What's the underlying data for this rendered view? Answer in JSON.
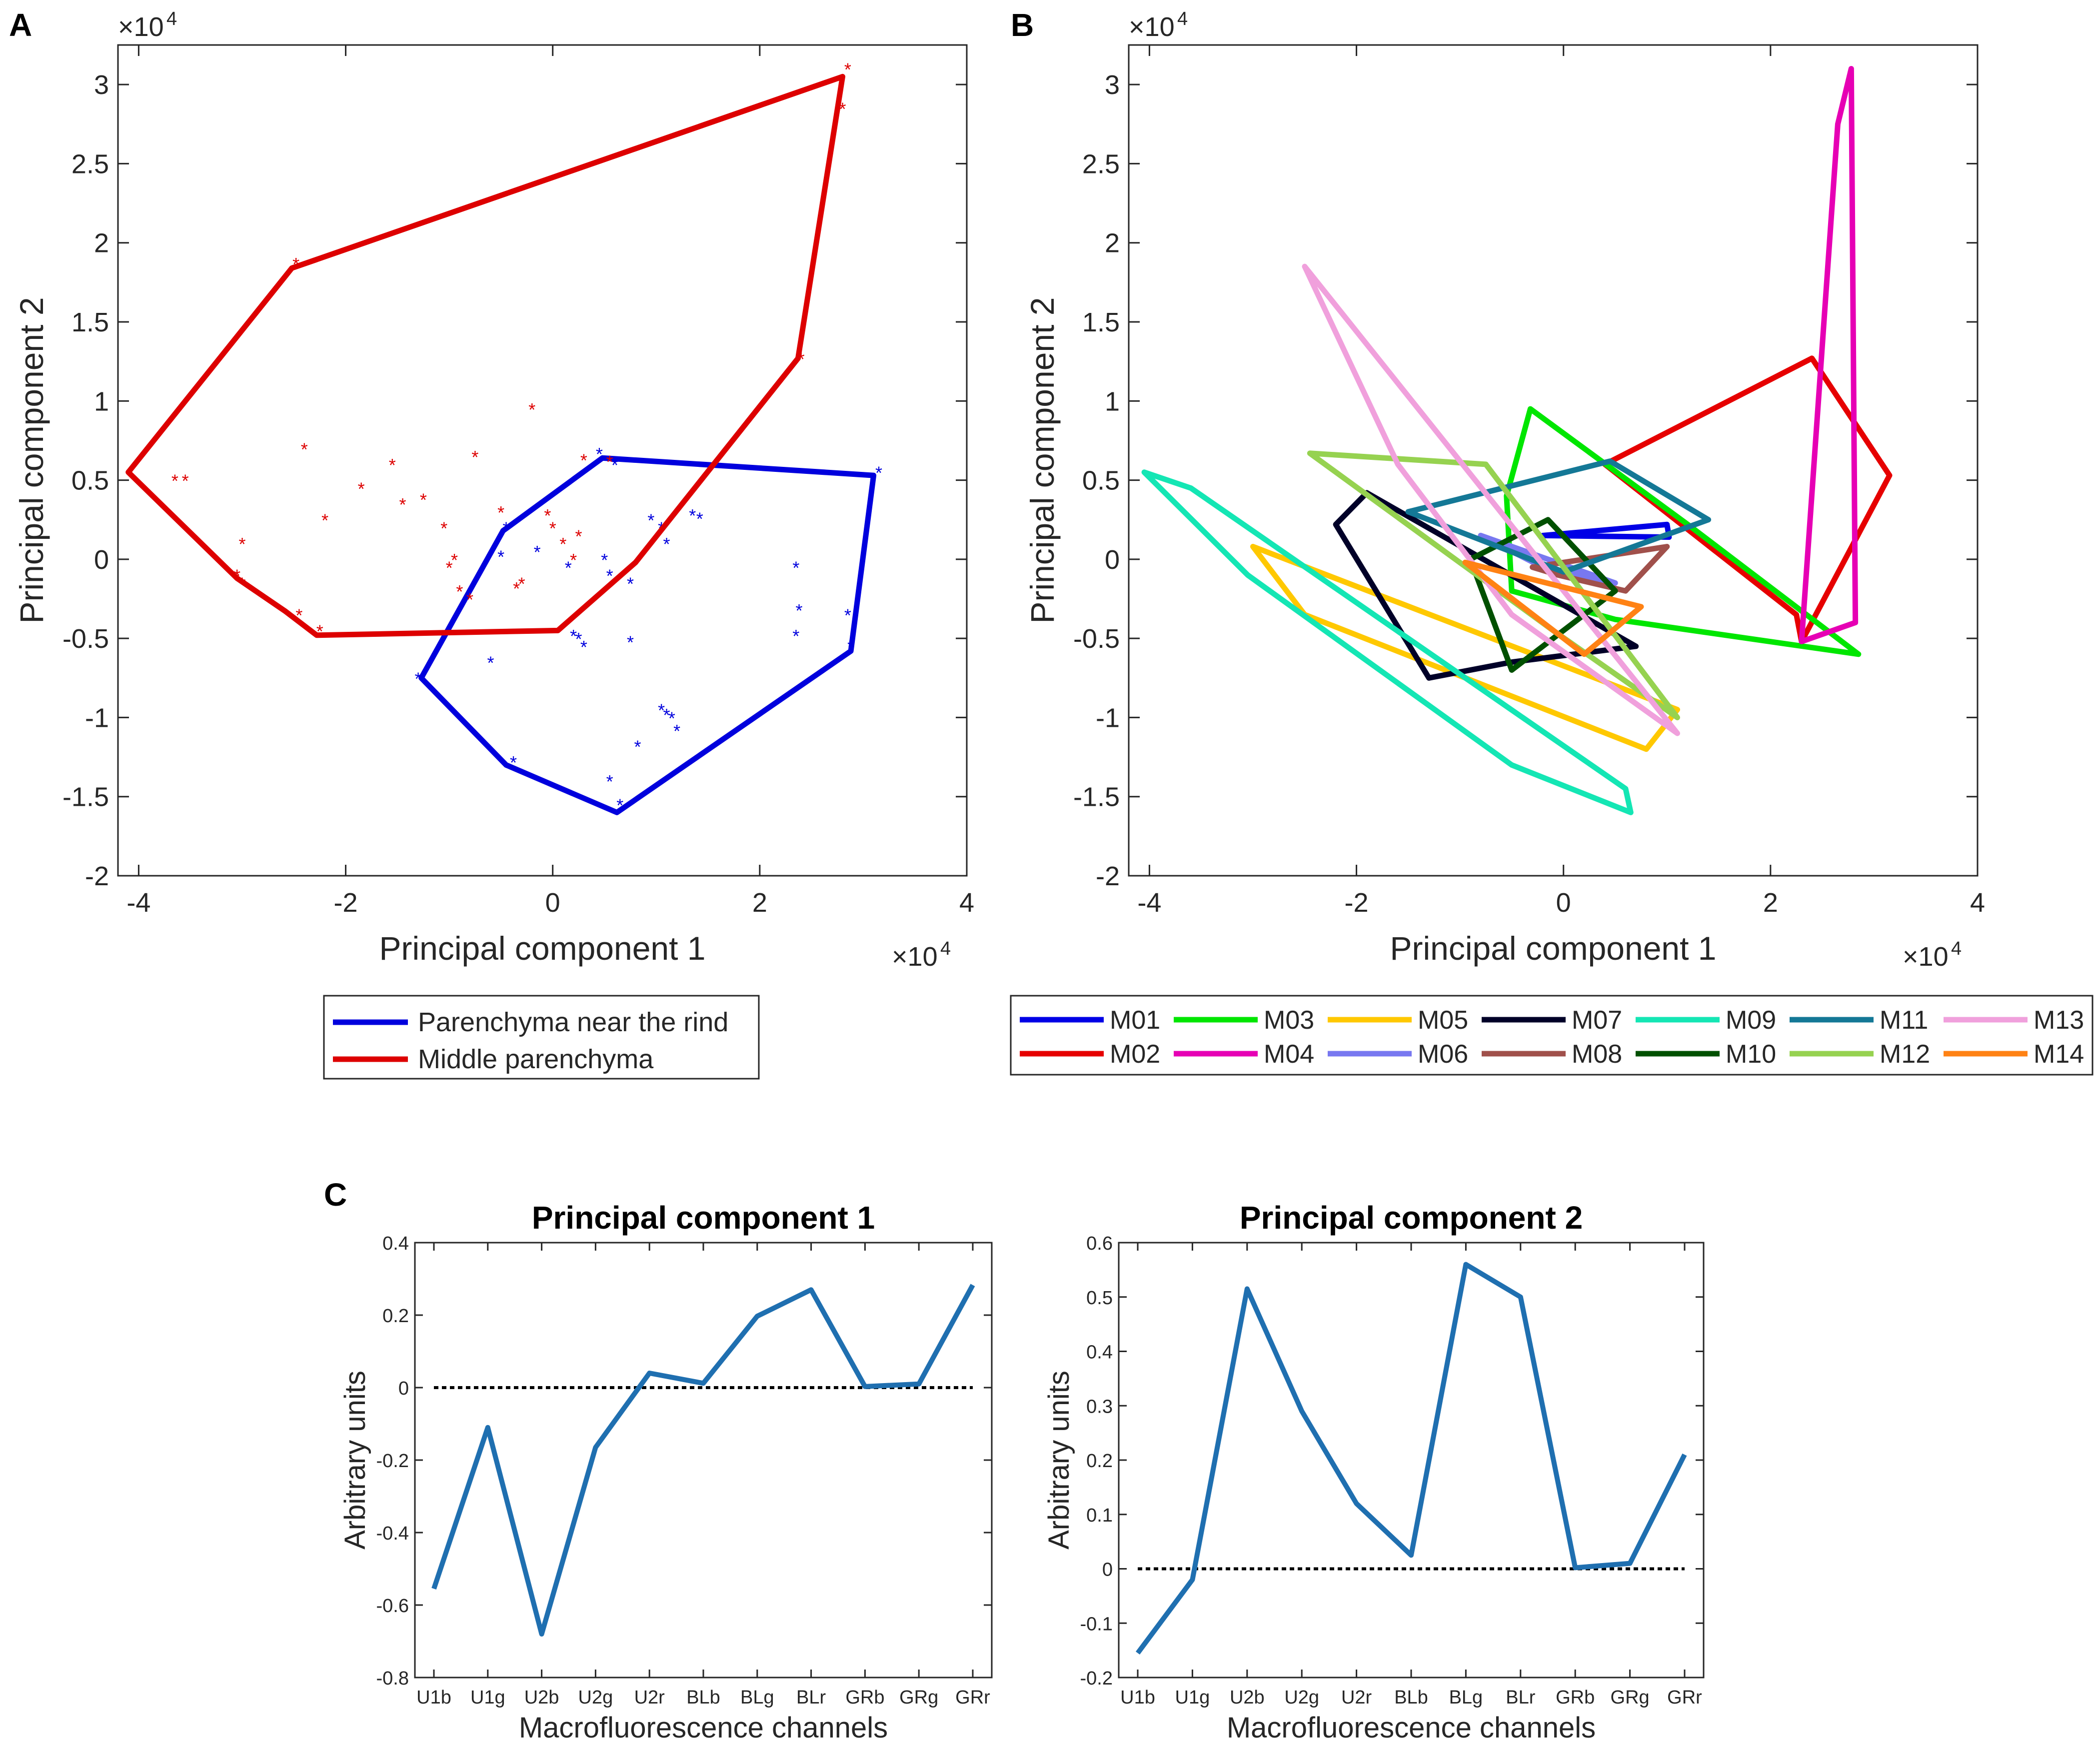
{
  "panel_labels": {
    "a": "A",
    "b": "B",
    "c": "C"
  },
  "scale_label": "×10",
  "scale_exponent": "4",
  "chart_data": [
    {
      "id": "A",
      "type": "scatter",
      "xlabel": "Principal component 1",
      "ylabel": "Principal component 2",
      "xlim": [
        -4.2,
        4
      ],
      "ylim": [
        -2,
        3.25
      ],
      "xticks": [
        -4,
        -2,
        0,
        2,
        4
      ],
      "yticks": [
        -2,
        -1.5,
        -1,
        -0.5,
        0,
        0.5,
        1,
        1.5,
        2,
        2.5,
        3
      ],
      "tick_labels_x": [
        "-4",
        "-2",
        "0",
        "2",
        "4"
      ],
      "tick_labels_y": [
        "-2",
        "-1.5",
        "-1",
        "-0.5",
        "0",
        "0.5",
        "1",
        "1.5",
        "2",
        "2.5",
        "3"
      ],
      "units_note": "×10^4",
      "series": [
        {
          "name": "Parenchyma near the rind",
          "color": "#0000dd",
          "hull": [
            [
              0.48,
              0.64
            ],
            [
              3.1,
              0.53
            ],
            [
              2.88,
              -0.58
            ],
            [
              0.62,
              -1.6
            ],
            [
              -0.45,
              -1.3
            ],
            [
              -1.27,
              -0.75
            ],
            [
              -0.48,
              0.18
            ],
            [
              0.48,
              0.64
            ]
          ],
          "points": [
            [
              0.45,
              0.67
            ],
            [
              0.6,
              0.6
            ],
            [
              3.15,
              0.55
            ],
            [
              -0.45,
              0.2
            ],
            [
              -0.5,
              0.02
            ],
            [
              -0.15,
              0.05
            ],
            [
              0.15,
              -0.05
            ],
            [
              0.5,
              0.0
            ],
            [
              0.55,
              -0.1
            ],
            [
              0.75,
              -0.15
            ],
            [
              0.2,
              -0.48
            ],
            [
              0.25,
              -0.5
            ],
            [
              0.3,
              -0.55
            ],
            [
              0.75,
              -0.52
            ],
            [
              0.95,
              0.25
            ],
            [
              1.05,
              0.2
            ],
            [
              1.1,
              0.1
            ],
            [
              1.35,
              0.28
            ],
            [
              1.42,
              0.26
            ],
            [
              2.35,
              -0.05
            ],
            [
              2.38,
              -0.32
            ],
            [
              2.35,
              -0.48
            ],
            [
              2.85,
              -0.35
            ],
            [
              2.88,
              -0.55
            ],
            [
              1.05,
              -0.95
            ],
            [
              1.1,
              -0.98
            ],
            [
              1.15,
              -1.0
            ],
            [
              1.2,
              -1.08
            ],
            [
              0.82,
              -1.18
            ],
            [
              0.55,
              -1.4
            ],
            [
              0.65,
              -1.55
            ],
            [
              -0.38,
              -1.28
            ],
            [
              -0.6,
              -0.65
            ],
            [
              -1.3,
              -0.75
            ]
          ]
        },
        {
          "name": "Middle parenchyma",
          "color": "#dd0000",
          "hull": [
            [
              -2.52,
              1.84
            ],
            [
              2.8,
              3.05
            ],
            [
              2.37,
              1.27
            ],
            [
              0.8,
              -0.02
            ],
            [
              0.05,
              -0.45
            ],
            [
              -2.28,
              -0.48
            ],
            [
              -2.58,
              -0.33
            ],
            [
              -3.05,
              -0.12
            ],
            [
              -4.1,
              0.55
            ],
            [
              -2.52,
              1.84
            ]
          ],
          "points": [
            [
              -2.48,
              1.87
            ],
            [
              2.85,
              3.1
            ],
            [
              2.8,
              2.85
            ],
            [
              2.4,
              1.27
            ],
            [
              -3.65,
              0.5
            ],
            [
              -3.0,
              0.1
            ],
            [
              -3.05,
              -0.1
            ],
            [
              -3.0,
              -0.15
            ],
            [
              -2.45,
              -0.35
            ],
            [
              -2.25,
              -0.45
            ],
            [
              -2.4,
              0.7
            ],
            [
              -2.2,
              0.25
            ],
            [
              -1.85,
              0.45
            ],
            [
              -1.55,
              0.6
            ],
            [
              -1.45,
              0.35
            ],
            [
              -1.25,
              0.38
            ],
            [
              -1.05,
              0.2
            ],
            [
              -0.95,
              -0.0
            ],
            [
              -1.0,
              -0.05
            ],
            [
              -0.9,
              -0.2
            ],
            [
              -0.8,
              -0.25
            ],
            [
              -0.75,
              0.65
            ],
            [
              -0.5,
              0.3
            ],
            [
              -0.35,
              -0.18
            ],
            [
              -0.3,
              -0.15
            ],
            [
              -0.2,
              0.95
            ],
            [
              -0.05,
              0.28
            ],
            [
              0.0,
              0.2
            ],
            [
              0.1,
              0.1
            ],
            [
              0.2,
              0.0
            ],
            [
              0.25,
              0.15
            ],
            [
              0.3,
              0.63
            ],
            [
              0.55,
              0.62
            ],
            [
              -3.55,
              0.5
            ]
          ]
        }
      ]
    },
    {
      "id": "B",
      "type": "line",
      "xlabel": "Principal component 1",
      "ylabel": "Principal component 2",
      "xlim": [
        -4.2,
        4
      ],
      "ylim": [
        -2,
        3.25
      ],
      "xticks": [
        -4,
        -2,
        0,
        2,
        4
      ],
      "yticks": [
        -2,
        -1.5,
        -1,
        -0.5,
        0,
        0.5,
        1,
        1.5,
        2,
        2.5,
        3
      ],
      "tick_labels_x": [
        "-4",
        "-2",
        "0",
        "2",
        "4"
      ],
      "tick_labels_y": [
        "-2",
        "-1.5",
        "-1",
        "-0.5",
        "0",
        "0.5",
        "1",
        "1.5",
        "2",
        "2.5",
        "3"
      ],
      "units_note": "×10^4",
      "series": [
        {
          "name": "M01",
          "color": "#0000e6",
          "points": [
            [
              -0.2,
              0.15
            ],
            [
              1.0,
              0.22
            ],
            [
              1.02,
              0.14
            ],
            [
              -0.2,
              0.15
            ]
          ]
        },
        {
          "name": "M02",
          "color": "#e60000",
          "points": [
            [
              0.4,
              0.6
            ],
            [
              2.4,
              1.27
            ],
            [
              3.15,
              0.53
            ],
            [
              2.3,
              -0.52
            ],
            [
              2.25,
              -0.35
            ],
            [
              0.4,
              0.6
            ]
          ]
        },
        {
          "name": "M03",
          "color": "#00e600",
          "points": [
            [
              -0.32,
              0.95
            ],
            [
              1.2,
              0.22
            ],
            [
              2.85,
              -0.6
            ],
            [
              0.5,
              -0.38
            ],
            [
              -0.5,
              -0.2
            ],
            [
              -0.55,
              0.4
            ],
            [
              -0.32,
              0.95
            ]
          ]
        },
        {
          "name": "M04",
          "color": "#e600b4",
          "points": [
            [
              2.78,
              3.1
            ],
            [
              2.82,
              -0.4
            ],
            [
              2.3,
              -0.52
            ],
            [
              2.65,
              2.75
            ],
            [
              2.78,
              3.1
            ]
          ]
        },
        {
          "name": "M05",
          "color": "#ffc800",
          "points": [
            [
              -3.0,
              0.08
            ],
            [
              1.1,
              -0.95
            ],
            [
              0.8,
              -1.2
            ],
            [
              -2.5,
              -0.35
            ],
            [
              -3.0,
              0.08
            ]
          ]
        },
        {
          "name": "M06",
          "color": "#7878f0",
          "points": [
            [
              -0.8,
              0.15
            ],
            [
              0.5,
              -0.15
            ],
            [
              -0.2,
              -0.05
            ],
            [
              -0.8,
              0.15
            ]
          ]
        },
        {
          "name": "M07",
          "color": "#000028",
          "points": [
            [
              -1.9,
              0.42
            ],
            [
              0.7,
              -0.55
            ],
            [
              -0.5,
              -0.65
            ],
            [
              -1.3,
              -0.75
            ],
            [
              -2.2,
              0.22
            ],
            [
              -1.9,
              0.42
            ]
          ]
        },
        {
          "name": "M08",
          "color": "#a0504b",
          "points": [
            [
              -0.3,
              -0.05
            ],
            [
              1.0,
              0.08
            ],
            [
              0.6,
              -0.2
            ],
            [
              -0.05,
              -0.1
            ],
            [
              -0.3,
              -0.05
            ]
          ]
        },
        {
          "name": "M09",
          "color": "#14e6b4",
          "points": [
            [
              -4.05,
              0.55
            ],
            [
              -3.6,
              0.45
            ],
            [
              0.6,
              -1.45
            ],
            [
              0.65,
              -1.6
            ],
            [
              -0.5,
              -1.3
            ],
            [
              -3.05,
              -0.1
            ],
            [
              -4.05,
              0.55
            ]
          ]
        },
        {
          "name": "M10",
          "color": "#005000",
          "points": [
            [
              -0.15,
              0.25
            ],
            [
              0.5,
              -0.2
            ],
            [
              -0.5,
              -0.7
            ],
            [
              -0.9,
              0.0
            ],
            [
              -0.15,
              0.25
            ]
          ]
        },
        {
          "name": "M11",
          "color": "#147896",
          "points": [
            [
              -1.5,
              0.3
            ],
            [
              0.45,
              0.62
            ],
            [
              1.4,
              0.25
            ],
            [
              0.0,
              -0.08
            ],
            [
              -1.5,
              0.3
            ]
          ]
        },
        {
          "name": "M12",
          "color": "#96d250",
          "points": [
            [
              -2.45,
              0.67
            ],
            [
              -0.75,
              0.6
            ],
            [
              1.1,
              -1.0
            ],
            [
              -0.1,
              -0.45
            ],
            [
              -2.45,
              0.67
            ]
          ]
        },
        {
          "name": "M13",
          "color": "#f0a0dc",
          "points": [
            [
              -2.5,
              1.85
            ],
            [
              1.1,
              -1.1
            ],
            [
              -0.5,
              -0.35
            ],
            [
              -1.6,
              0.6
            ],
            [
              -2.5,
              1.85
            ]
          ]
        },
        {
          "name": "M14",
          "color": "#ff8214",
          "points": [
            [
              -0.95,
              -0.02
            ],
            [
              0.75,
              -0.3
            ],
            [
              0.2,
              -0.6
            ],
            [
              -0.95,
              -0.02
            ]
          ]
        }
      ]
    },
    {
      "id": "C1",
      "type": "line",
      "title": "Principal component 1",
      "xlabel": "Macrofluorescence channels",
      "ylabel": "Arbitrary units",
      "categories": [
        "U1b",
        "U1g",
        "U2b",
        "U2g",
        "U2r",
        "BLb",
        "BLg",
        "BLr",
        "GRb",
        "GRg",
        "GRr"
      ],
      "ylim": [
        -0.8,
        0.4
      ],
      "yticks": [
        -0.8,
        -0.6,
        -0.4,
        -0.2,
        0,
        0.2,
        0.4
      ],
      "tick_labels_y": [
        "-0.8",
        "-0.6",
        "-0.4",
        "-0.2",
        "0",
        "0.2",
        "0.4"
      ],
      "values": [
        -0.555,
        -0.11,
        -0.68,
        -0.165,
        0.04,
        0.012,
        0.197,
        0.27,
        0.003,
        0.01,
        0.283
      ],
      "color": "#1f6fb0",
      "zero_line": true
    },
    {
      "id": "C2",
      "type": "line",
      "title": "Principal component 2",
      "xlabel": "Macrofluorescence channels",
      "ylabel": "Arbitrary units",
      "categories": [
        "U1b",
        "U1g",
        "U2b",
        "U2g",
        "U2r",
        "BLb",
        "BLg",
        "BLr",
        "GRb",
        "GRg",
        "GRr"
      ],
      "ylim": [
        -0.2,
        0.6
      ],
      "yticks": [
        -0.2,
        -0.1,
        0,
        0.1,
        0.2,
        0.3,
        0.4,
        0.5,
        0.6
      ],
      "tick_labels_y": [
        "-0.2",
        "-0.1",
        "0",
        "0.1",
        "0.2",
        "0.3",
        "0.4",
        "0.5",
        "0.6"
      ],
      "values": [
        -0.155,
        -0.02,
        0.515,
        0.29,
        0.12,
        0.025,
        0.56,
        0.5,
        0.002,
        0.01,
        0.21
      ],
      "color": "#1f6fb0",
      "zero_line": true
    }
  ]
}
